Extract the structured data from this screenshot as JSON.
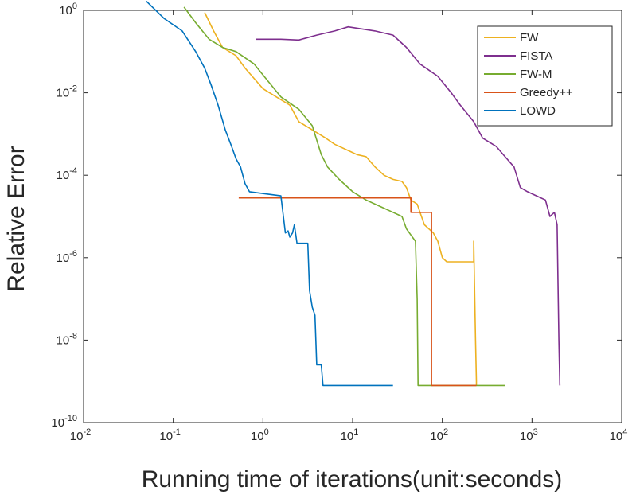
{
  "chart_data": {
    "type": "line",
    "title": "",
    "xlabel": "Running time of iterations(unit:seconds)",
    "ylabel": "Relative Error",
    "xscale": "log",
    "yscale": "log",
    "xlim_exp": [
      -2,
      4
    ],
    "ylim_exp": [
      -10,
      0
    ],
    "x_ticks": [
      {
        "base": "10",
        "exp": "-2"
      },
      {
        "base": "10",
        "exp": "-1"
      },
      {
        "base": "10",
        "exp": "0"
      },
      {
        "base": "10",
        "exp": "1"
      },
      {
        "base": "10",
        "exp": "2"
      },
      {
        "base": "10",
        "exp": "3"
      },
      {
        "base": "10",
        "exp": "4"
      }
    ],
    "y_ticks": [
      {
        "base": "10",
        "exp": "-10"
      },
      {
        "base": "10",
        "exp": "-8"
      },
      {
        "base": "10",
        "exp": "-6"
      },
      {
        "base": "10",
        "exp": "-4"
      },
      {
        "base": "10",
        "exp": "-2"
      },
      {
        "base": "10",
        "exp": "0"
      }
    ],
    "legend_position": "top-right",
    "series": [
      {
        "name": "FW",
        "color": "#EDB120",
        "points_log10": [
          [
            -0.65,
            -0.05
          ],
          [
            -0.55,
            -0.5
          ],
          [
            -0.45,
            -0.9
          ],
          [
            -0.3,
            -1.1
          ],
          [
            -0.2,
            -1.4
          ],
          [
            -0.1,
            -1.65
          ],
          [
            0.0,
            -1.9
          ],
          [
            0.15,
            -2.1
          ],
          [
            0.3,
            -2.3
          ],
          [
            0.4,
            -2.7
          ],
          [
            0.55,
            -2.9
          ],
          [
            0.7,
            -3.1
          ],
          [
            0.8,
            -3.25
          ],
          [
            0.95,
            -3.4
          ],
          [
            1.05,
            -3.5
          ],
          [
            1.15,
            -3.55
          ],
          [
            1.25,
            -3.8
          ],
          [
            1.35,
            -4.0
          ],
          [
            1.45,
            -4.1
          ],
          [
            1.55,
            -4.15
          ],
          [
            1.6,
            -4.3
          ],
          [
            1.65,
            -4.6
          ],
          [
            1.72,
            -4.7
          ],
          [
            1.8,
            -5.2
          ],
          [
            1.9,
            -5.4
          ],
          [
            1.95,
            -5.6
          ],
          [
            2.0,
            -6.0
          ],
          [
            2.05,
            -6.1
          ],
          [
            2.1,
            -6.1
          ],
          [
            2.35,
            -6.1
          ],
          [
            2.35,
            -5.6
          ],
          [
            2.37,
            -8.0
          ],
          [
            2.38,
            -9.0
          ],
          [
            2.38,
            -9.1
          ]
        ]
      },
      {
        "name": "FISTA",
        "color": "#7E2F8E",
        "points_log10": [
          [
            -0.08,
            -0.7
          ],
          [
            0.2,
            -0.7
          ],
          [
            0.4,
            -0.72
          ],
          [
            0.6,
            -0.6
          ],
          [
            0.8,
            -0.5
          ],
          [
            0.95,
            -0.4
          ],
          [
            1.1,
            -0.45
          ],
          [
            1.25,
            -0.5
          ],
          [
            1.45,
            -0.6
          ],
          [
            1.6,
            -0.9
          ],
          [
            1.75,
            -1.3
          ],
          [
            1.95,
            -1.6
          ],
          [
            2.1,
            -2.0
          ],
          [
            2.2,
            -2.3
          ],
          [
            2.35,
            -2.7
          ],
          [
            2.45,
            -3.1
          ],
          [
            2.6,
            -3.3
          ],
          [
            2.7,
            -3.55
          ],
          [
            2.8,
            -3.8
          ],
          [
            2.87,
            -4.3
          ],
          [
            2.95,
            -4.4
          ],
          [
            3.05,
            -4.5
          ],
          [
            3.15,
            -4.6
          ],
          [
            3.2,
            -5.0
          ],
          [
            3.25,
            -4.9
          ],
          [
            3.28,
            -5.2
          ],
          [
            3.3,
            -8.0
          ],
          [
            3.31,
            -9.1
          ]
        ]
      },
      {
        "name": "FW-M",
        "color": "#77AC30",
        "points_log10": [
          [
            -0.88,
            0.08
          ],
          [
            -0.75,
            -0.3
          ],
          [
            -0.6,
            -0.7
          ],
          [
            -0.45,
            -0.9
          ],
          [
            -0.3,
            -1.0
          ],
          [
            -0.1,
            -1.3
          ],
          [
            0.05,
            -1.7
          ],
          [
            0.2,
            -2.1
          ],
          [
            0.4,
            -2.4
          ],
          [
            0.55,
            -2.8
          ],
          [
            0.65,
            -3.5
          ],
          [
            0.72,
            -3.8
          ],
          [
            0.85,
            -4.1
          ],
          [
            1.0,
            -4.4
          ],
          [
            1.15,
            -4.6
          ],
          [
            1.35,
            -4.8
          ],
          [
            1.45,
            -4.9
          ],
          [
            1.55,
            -5.0
          ],
          [
            1.6,
            -5.3
          ],
          [
            1.65,
            -5.45
          ],
          [
            1.7,
            -5.6
          ],
          [
            1.72,
            -7.0
          ],
          [
            1.73,
            -9.1
          ],
          [
            2.7,
            -9.1
          ]
        ]
      },
      {
        "name": "Greedy++",
        "color": "#D95319",
        "points_log10": [
          [
            -0.27,
            -4.55
          ],
          [
            1.65,
            -4.55
          ],
          [
            1.65,
            -4.9
          ],
          [
            1.88,
            -4.9
          ],
          [
            1.88,
            -9.1
          ],
          [
            2.38,
            -9.1
          ]
        ]
      },
      {
        "name": "LOWD",
        "color": "#0072BD",
        "points_log10": [
          [
            -1.3,
            0.22
          ],
          [
            -1.1,
            -0.2
          ],
          [
            -0.9,
            -0.5
          ],
          [
            -0.75,
            -1.0
          ],
          [
            -0.65,
            -1.4
          ],
          [
            -0.58,
            -1.8
          ],
          [
            -0.5,
            -2.3
          ],
          [
            -0.42,
            -2.9
          ],
          [
            -0.35,
            -3.3
          ],
          [
            -0.3,
            -3.6
          ],
          [
            -0.25,
            -3.8
          ],
          [
            -0.2,
            -4.2
          ],
          [
            -0.15,
            -4.4
          ],
          [
            0.2,
            -4.5
          ],
          [
            0.25,
            -5.4
          ],
          [
            0.28,
            -5.35
          ],
          [
            0.3,
            -5.5
          ],
          [
            0.33,
            -5.4
          ],
          [
            0.35,
            -5.2
          ],
          [
            0.38,
            -5.65
          ],
          [
            0.5,
            -5.65
          ],
          [
            0.52,
            -6.8
          ],
          [
            0.55,
            -7.2
          ],
          [
            0.58,
            -7.4
          ],
          [
            0.6,
            -8.6
          ],
          [
            0.65,
            -8.6
          ],
          [
            0.67,
            -9.1
          ],
          [
            1.45,
            -9.1
          ]
        ]
      }
    ]
  }
}
